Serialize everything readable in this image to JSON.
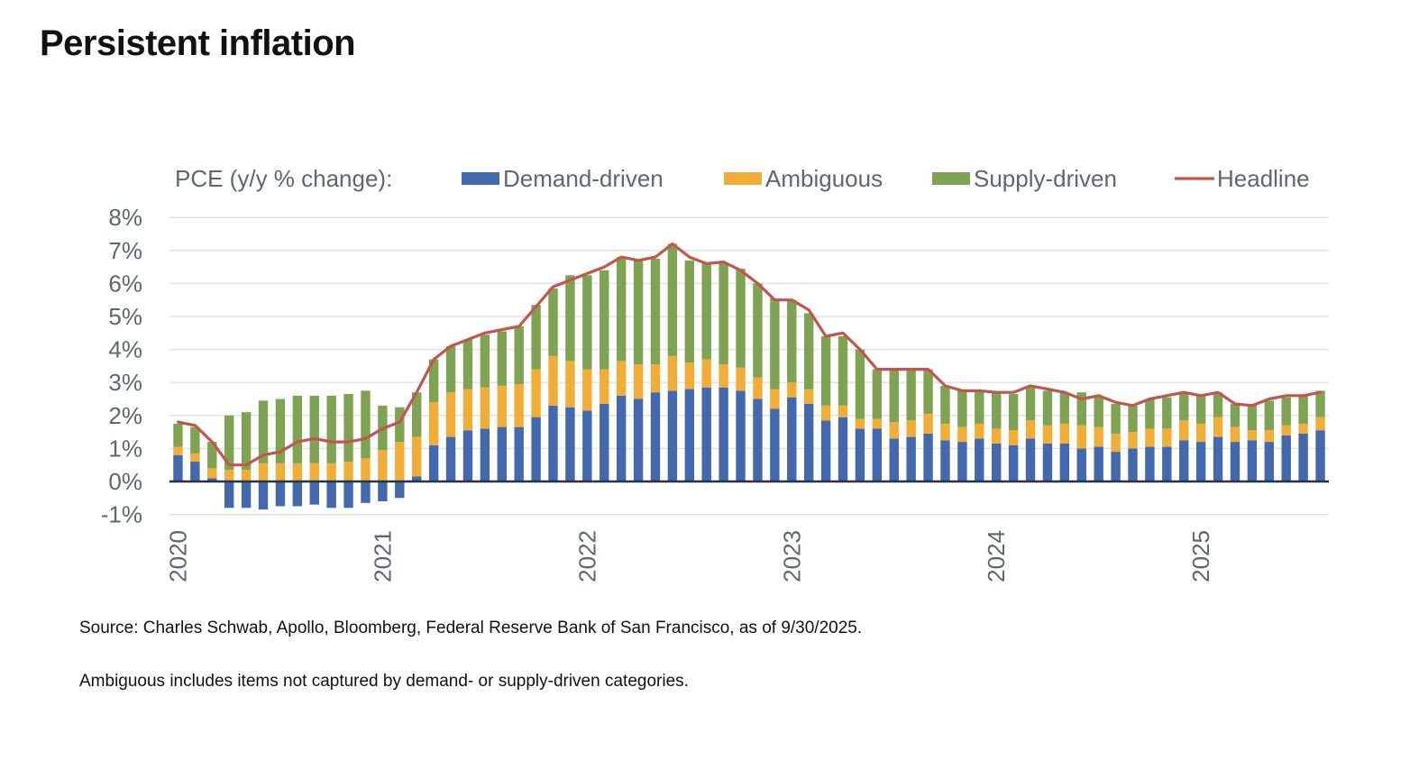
{
  "page": {
    "title": "Persistent inflation",
    "source": "Source: Charles Schwab, Apollo, Bloomberg, Federal Reserve Bank of San Francisco, as of 9/30/2025.",
    "footnote": "Ambiguous includes items not captured by demand- or supply-driven categories."
  },
  "chart_data": {
    "type": "bar",
    "stacked": true,
    "title": "",
    "legend_title": "PCE (y/y % change):",
    "legend_position": "top",
    "grid": true,
    "ylim": [
      -1,
      8
    ],
    "y_ticks": [
      "-1%",
      "0%",
      "1%",
      "2%",
      "3%",
      "4%",
      "5%",
      "6%",
      "7%",
      "8%"
    ],
    "x_tick_labels": [
      "2020",
      "2021",
      "2022",
      "2023",
      "2024",
      "2025"
    ],
    "start_month": "2020-01",
    "series": [
      {
        "name": "Demand-driven",
        "color": "#4468ad",
        "values": [
          0.8,
          0.6,
          0.1,
          -0.8,
          -0.8,
          -0.85,
          -0.75,
          -0.75,
          -0.7,
          -0.8,
          -0.8,
          -0.65,
          -0.6,
          -0.5,
          0.15,
          1.1,
          1.35,
          1.55,
          1.6,
          1.65,
          1.65,
          1.95,
          2.3,
          2.25,
          2.15,
          2.35,
          2.6,
          2.5,
          2.7,
          2.75,
          2.8,
          2.85,
          2.85,
          2.75,
          2.5,
          2.2,
          2.55,
          2.35,
          1.85,
          1.95,
          1.6,
          1.6,
          1.3,
          1.35,
          1.45,
          1.25,
          1.2,
          1.3,
          1.15,
          1.1,
          1.3,
          1.15,
          1.15,
          1.0,
          1.05,
          0.9,
          1.0,
          1.05,
          1.05,
          1.25,
          1.2,
          1.35,
          1.2,
          1.25,
          1.2,
          1.4,
          1.45,
          1.55
        ]
      },
      {
        "name": "Ambiguous",
        "color": "#f2ad36",
        "values": [
          0.25,
          0.25,
          0.3,
          0.35,
          0.35,
          0.55,
          0.55,
          0.55,
          0.55,
          0.55,
          0.6,
          0.7,
          0.95,
          1.2,
          1.2,
          1.3,
          1.35,
          1.25,
          1.25,
          1.25,
          1.3,
          1.45,
          1.5,
          1.4,
          1.25,
          1.05,
          1.05,
          1.05,
          0.85,
          1.05,
          0.8,
          0.85,
          0.7,
          0.7,
          0.65,
          0.6,
          0.45,
          0.45,
          0.45,
          0.35,
          0.3,
          0.3,
          0.5,
          0.5,
          0.6,
          0.5,
          0.45,
          0.45,
          0.45,
          0.45,
          0.55,
          0.55,
          0.6,
          0.7,
          0.6,
          0.55,
          0.5,
          0.55,
          0.55,
          0.6,
          0.55,
          0.6,
          0.45,
          0.3,
          0.35,
          0.3,
          0.3,
          0.4
        ]
      },
      {
        "name": "Supply-driven",
        "color": "#7ea353",
        "values": [
          0.7,
          0.8,
          0.8,
          1.65,
          1.75,
          1.9,
          1.95,
          2.05,
          2.05,
          2.05,
          2.05,
          2.05,
          1.35,
          1.05,
          1.35,
          1.3,
          1.4,
          1.5,
          1.6,
          1.65,
          1.75,
          1.95,
          2.05,
          2.6,
          2.85,
          3.0,
          3.15,
          3.15,
          3.2,
          3.4,
          3.1,
          2.9,
          3.05,
          3.0,
          2.85,
          2.75,
          2.5,
          2.3,
          2.1,
          2.1,
          2.1,
          1.5,
          1.6,
          1.55,
          1.35,
          1.15,
          1.1,
          1.0,
          1.1,
          1.1,
          1.05,
          1.05,
          0.95,
          1.0,
          0.9,
          0.9,
          0.8,
          0.9,
          0.95,
          0.85,
          0.85,
          0.75,
          0.7,
          0.8,
          0.9,
          0.85,
          0.85,
          0.8
        ]
      },
      {
        "name": "Headline",
        "type": "line",
        "color": "#c4544e",
        "values": [
          1.8,
          1.7,
          1.2,
          0.5,
          0.5,
          0.8,
          0.9,
          1.2,
          1.3,
          1.2,
          1.2,
          1.3,
          1.6,
          1.8,
          2.7,
          3.7,
          4.1,
          4.3,
          4.5,
          4.6,
          4.7,
          5.3,
          5.9,
          6.1,
          6.3,
          6.5,
          6.8,
          6.7,
          6.8,
          7.2,
          6.8,
          6.6,
          6.65,
          6.4,
          6.0,
          5.5,
          5.5,
          5.2,
          4.4,
          4.5,
          4.0,
          3.4,
          3.4,
          3.4,
          3.4,
          2.9,
          2.75,
          2.75,
          2.7,
          2.7,
          2.9,
          2.8,
          2.7,
          2.5,
          2.6,
          2.4,
          2.3,
          2.5,
          2.6,
          2.7,
          2.6,
          2.7,
          2.35,
          2.3,
          2.5,
          2.6,
          2.6,
          2.7
        ]
      }
    ]
  }
}
